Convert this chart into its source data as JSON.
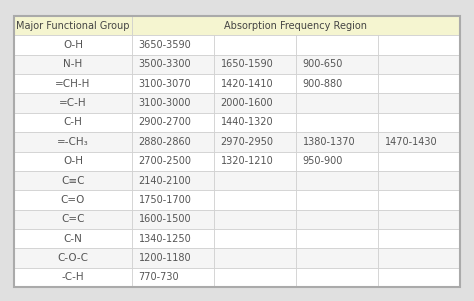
{
  "header_col1": "Major Functional Group",
  "header_col2": "Absorption Frequency Region",
  "header_bg": "#f5f5d0",
  "header_text_color": "#444444",
  "row_bg_white": "#ffffff",
  "row_bg_gray": "#f5f5f5",
  "border_color": "#cccccc",
  "text_color": "#555555",
  "outer_bg": "#e8e8e8",
  "table_border_color": "#aaaaaa",
  "rows": [
    {
      "group": "O-H",
      "vals": [
        "3650-3590",
        "",
        "",
        ""
      ]
    },
    {
      "group": "N-H",
      "vals": [
        "3500-3300",
        "1650-1590",
        "900-650",
        ""
      ]
    },
    {
      "group": "=CH-H",
      "vals": [
        "3100-3070",
        "1420-1410",
        "900-880",
        ""
      ]
    },
    {
      "group": "=C-H",
      "vals": [
        "3100-3000",
        "2000-1600",
        "",
        ""
      ]
    },
    {
      "group": "C-H",
      "vals": [
        "2900-2700",
        "1440-1320",
        "",
        ""
      ]
    },
    {
      "group": "=-CH₃",
      "vals": [
        "2880-2860",
        "2970-2950",
        "1380-1370",
        "1470-1430"
      ]
    },
    {
      "group": "O-H",
      "vals": [
        "2700-2500",
        "1320-1210",
        "950-900",
        ""
      ]
    },
    {
      "group": "C≡C",
      "vals": [
        "2140-2100",
        "",
        "",
        ""
      ]
    },
    {
      "group": "C=O",
      "vals": [
        "1750-1700",
        "",
        "",
        ""
      ]
    },
    {
      "group": "C=C",
      "vals": [
        "1600-1500",
        "",
        "",
        ""
      ]
    },
    {
      "group": "C-N",
      "vals": [
        "1340-1250",
        "",
        "",
        ""
      ]
    },
    {
      "group": "C-O-C",
      "vals": [
        "1200-1180",
        "",
        "",
        ""
      ]
    },
    {
      "group": "-C-H",
      "vals": [
        "770-730",
        "",
        "",
        ""
      ]
    }
  ],
  "fig_bg": "#e0e0e0",
  "font_size_header": 7.0,
  "font_size_group": 7.5,
  "font_size_val": 7.0
}
